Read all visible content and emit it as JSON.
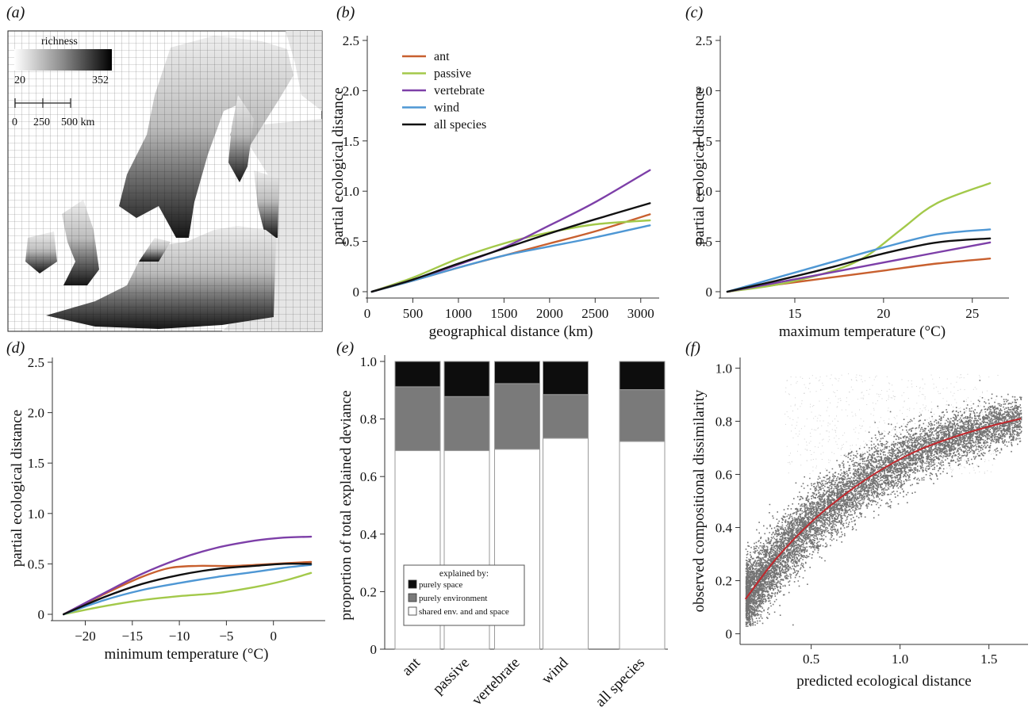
{
  "panel_labels": {
    "a": "(a)",
    "b": "(b)",
    "c": "(c)",
    "d": "(d)",
    "e": "(e)",
    "f": "(f)"
  },
  "map": {
    "richness_title": "richness",
    "richness_min": "20",
    "richness_max": "352",
    "scale_ticks": [
      "0",
      "250",
      "500 km"
    ]
  },
  "colors": {
    "ant": "#c8602f",
    "passive": "#a3c94a",
    "vertebrate": "#7d3fa8",
    "wind": "#4e97d4",
    "all species": "#111111",
    "space": "#0d0d0d",
    "environment": "#7a7a7a",
    "shared": "#ffffff",
    "fit_line": "#c0282d",
    "map_land_bg": "#e6e6e6"
  },
  "chart_data": [
    {
      "id": "b",
      "type": "line",
      "xlabel": "geographical distance (km)",
      "ylabel": "partial ecological distance",
      "xlim": [
        0,
        3150
      ],
      "ylim": [
        0,
        2.5
      ],
      "xticks": [
        0,
        500,
        1000,
        1500,
        2000,
        2500,
        3000
      ],
      "yticks": [
        0,
        0.5,
        1.0,
        1.5,
        2.0,
        2.5
      ],
      "ytick_labels": [
        "0",
        "0.5",
        "1.0",
        "1.5",
        "2.0",
        "2.5"
      ],
      "legend_position": "top-left",
      "series": [
        {
          "name": "ant",
          "x": [
            50,
            500,
            1000,
            1500,
            2000,
            2500,
            3100
          ],
          "y": [
            0,
            0.11,
            0.24,
            0.36,
            0.48,
            0.6,
            0.77
          ]
        },
        {
          "name": "passive",
          "x": [
            50,
            500,
            1000,
            1500,
            2000,
            2500,
            3100
          ],
          "y": [
            0,
            0.14,
            0.33,
            0.48,
            0.59,
            0.67,
            0.71
          ]
        },
        {
          "name": "vertebrate",
          "x": [
            50,
            500,
            1000,
            1500,
            2000,
            2500,
            3100
          ],
          "y": [
            0,
            0.12,
            0.27,
            0.44,
            0.66,
            0.89,
            1.21
          ]
        },
        {
          "name": "wind",
          "x": [
            50,
            500,
            1000,
            1500,
            2000,
            2500,
            3100
          ],
          "y": [
            0,
            0.11,
            0.24,
            0.36,
            0.45,
            0.54,
            0.66
          ]
        },
        {
          "name": "all species",
          "x": [
            50,
            500,
            1000,
            1500,
            2000,
            2500,
            3100
          ],
          "y": [
            0,
            0.12,
            0.28,
            0.43,
            0.58,
            0.72,
            0.88
          ]
        }
      ]
    },
    {
      "id": "c",
      "type": "line",
      "xlabel": "maximum temperature (°C)",
      "ylabel": "partial ecological distance",
      "xlim": [
        10.8,
        26.8
      ],
      "ylim": [
        0,
        2.5
      ],
      "xticks": [
        15,
        20,
        25
      ],
      "yticks": [
        0,
        0.5,
        1.0,
        1.5,
        2.0,
        2.5
      ],
      "ytick_labels": [
        "0",
        "0.5",
        "1.0",
        "1.5",
        "2.0",
        "2.5"
      ],
      "series": [
        {
          "name": "ant",
          "x": [
            11.2,
            14,
            17,
            20,
            23,
            26
          ],
          "y": [
            0,
            0.07,
            0.14,
            0.21,
            0.28,
            0.33
          ]
        },
        {
          "name": "passive",
          "x": [
            11.2,
            14,
            17,
            19,
            21,
            23,
            26
          ],
          "y": [
            0,
            0.07,
            0.2,
            0.35,
            0.62,
            0.88,
            1.08
          ]
        },
        {
          "name": "vertebrate",
          "x": [
            11.2,
            14,
            17,
            20,
            23,
            26
          ],
          "y": [
            0,
            0.09,
            0.19,
            0.29,
            0.39,
            0.49
          ]
        },
        {
          "name": "wind",
          "x": [
            11.2,
            14,
            17,
            20,
            23,
            26
          ],
          "y": [
            0,
            0.14,
            0.29,
            0.44,
            0.57,
            0.62
          ]
        },
        {
          "name": "all species",
          "x": [
            11.2,
            14,
            17,
            20,
            23,
            26
          ],
          "y": [
            0,
            0.11,
            0.24,
            0.38,
            0.49,
            0.53
          ]
        }
      ]
    },
    {
      "id": "d",
      "type": "line",
      "xlabel": "minimum temperature (°C)",
      "ylabel": "partial ecological distance",
      "xlim": [
        -23.5,
        5
      ],
      "ylim": [
        0,
        2.5
      ],
      "xticks": [
        -20,
        -15,
        -10,
        -5,
        0
      ],
      "xtick_labels": [
        "−20",
        "−15",
        "−10",
        "−5",
        "0"
      ],
      "yticks": [
        0,
        0.5,
        1.0,
        1.5,
        2.0,
        2.5
      ],
      "ytick_labels": [
        "0",
        "0.5",
        "1.0",
        "1.5",
        "2.0",
        "2.5"
      ],
      "series": [
        {
          "name": "ant",
          "x": [
            -22.3,
            -18,
            -14,
            -11,
            -8,
            -4,
            0,
            4
          ],
          "y": [
            0,
            0.2,
            0.37,
            0.46,
            0.48,
            0.48,
            0.5,
            0.52
          ]
        },
        {
          "name": "passive",
          "x": [
            -22.3,
            -18,
            -14,
            -10,
            -6,
            -2,
            1,
            4
          ],
          "y": [
            0,
            0.08,
            0.14,
            0.18,
            0.21,
            0.27,
            0.33,
            0.41
          ]
        },
        {
          "name": "vertebrate",
          "x": [
            -22.3,
            -18,
            -14,
            -10,
            -6,
            -2,
            1,
            4
          ],
          "y": [
            0,
            0.21,
            0.4,
            0.55,
            0.66,
            0.73,
            0.76,
            0.77
          ]
        },
        {
          "name": "wind",
          "x": [
            -22.3,
            -18,
            -14,
            -10,
            -6,
            -2,
            1,
            4
          ],
          "y": [
            0,
            0.14,
            0.24,
            0.31,
            0.37,
            0.42,
            0.46,
            0.49
          ]
        },
        {
          "name": "all species",
          "x": [
            -22.3,
            -18,
            -14,
            -10,
            -6,
            -2,
            1,
            4
          ],
          "y": [
            0,
            0.17,
            0.3,
            0.39,
            0.45,
            0.48,
            0.5,
            0.5
          ]
        }
      ]
    },
    {
      "id": "e",
      "type": "bar",
      "stacked": true,
      "ylabel": "proportion of total explained deviance",
      "ylim": [
        0,
        1.0
      ],
      "yticks": [
        0,
        0.2,
        0.4,
        0.6,
        0.8,
        1.0
      ],
      "ytick_labels": [
        "0",
        "0.2",
        "0.4",
        "0.6",
        "0.8",
        "1.0"
      ],
      "categories": [
        "ant",
        "passive",
        "vertebrate",
        "wind",
        "all species"
      ],
      "legend_title": "explained by:",
      "series": [
        {
          "name": "shared env. and and space",
          "values": [
            0.69,
            0.69,
            0.695,
            0.733,
            0.722
          ]
        },
        {
          "name": "purely environment",
          "values": [
            0.222,
            0.188,
            0.228,
            0.152,
            0.18
          ]
        },
        {
          "name": "purely space",
          "values": [
            0.088,
            0.122,
            0.077,
            0.115,
            0.098
          ]
        }
      ]
    },
    {
      "id": "f",
      "type": "scatter",
      "xlabel": "predicted ecological distance",
      "ylabel": "observed compositional dissimilarity",
      "xlim": [
        0.1,
        1.72
      ],
      "ylim": [
        -0.04,
        1.04
      ],
      "xticks": [
        0.5,
        1.0,
        1.5
      ],
      "xtick_labels": [
        "0.5",
        "1.0",
        "1.5"
      ],
      "yticks": [
        0,
        0.2,
        0.4,
        0.6,
        0.8,
        1.0
      ],
      "ytick_labels": [
        "0",
        "0.2",
        "0.4",
        "0.6",
        "0.8",
        "1.0"
      ],
      "fit_line": {
        "x": [
          0.13,
          0.3,
          0.5,
          0.7,
          0.9,
          1.1,
          1.3,
          1.5,
          1.68
        ],
        "y": [
          0.13,
          0.28,
          0.42,
          0.53,
          0.62,
          0.69,
          0.74,
          0.78,
          0.81
        ]
      }
    }
  ]
}
